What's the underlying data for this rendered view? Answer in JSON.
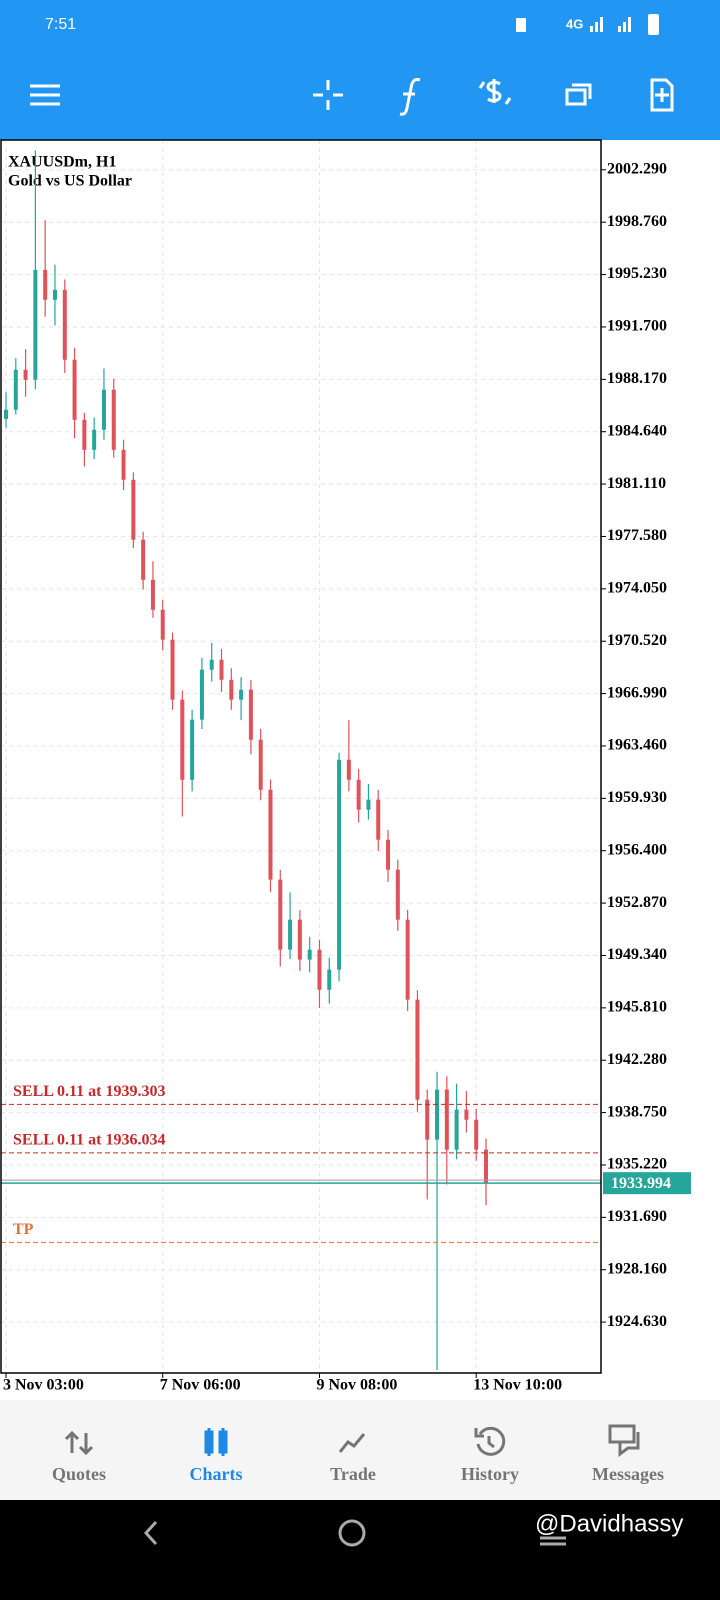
{
  "status_bar": {
    "time": "7:51",
    "network": "4G"
  },
  "chart_data": {
    "type": "candlestick",
    "title": "XAUUSDm, H1",
    "subtitle": "Gold vs US Dollar",
    "categories": [
      "3 Nov 03:00",
      null,
      null,
      null,
      null,
      null,
      null,
      null,
      null,
      null,
      null,
      null,
      null,
      null,
      null,
      null,
      "7 Nov 06:00",
      null,
      null,
      null,
      null,
      null,
      null,
      null,
      null,
      null,
      null,
      null,
      null,
      null,
      null,
      null,
      "9 Nov 08:00",
      null,
      null,
      null,
      null,
      null,
      null,
      null,
      null,
      null,
      null,
      null,
      null,
      null,
      null,
      null,
      "13 Nov 10:00",
      null
    ],
    "open": [
      1985.5,
      1986.12,
      1988.81,
      1988.14,
      1995.55,
      1993.53,
      1994.2,
      1989.49,
      1985.44,
      1983.42,
      1984.77,
      1987.47,
      1983.42,
      1981.4,
      1977.36,
      1974.66,
      1972.64,
      1970.62,
      1966.58,
      1961.18,
      1965.23,
      1968.6,
      1969.27,
      1967.92,
      1966.58,
      1967.25,
      1963.88,
      1960.51,
      1954.45,
      1949.73,
      1951.75,
      1949.06,
      1949.73,
      1947.03,
      1948.38,
      1962.53,
      1961.18,
      1959.16,
      1959.84,
      1957.14,
      1955.12,
      1951.75,
      1946.36,
      1939.62,
      1936.93,
      1940.3,
      1936.25,
      1938.95,
      1938.27,
      1936.25
    ],
    "high": [
      1987.3,
      1989.6,
      1990.2,
      2003.6,
      1998.9,
      1995.9,
      1994.9,
      1990.3,
      1985.9,
      1985.6,
      1988.9,
      1988.2,
      1984.1,
      1981.9,
      1977.9,
      1975.9,
      1973.3,
      1971.1,
      1967.2,
      1965.9,
      1969.4,
      1970.4,
      1970.0,
      1968.7,
      1968.1,
      1967.9,
      1964.6,
      1961.2,
      1955.1,
      1953.6,
      1952.4,
      1950.6,
      1950.4,
      1949.2,
      1963.0,
      1965.2,
      1961.9,
      1960.9,
      1960.5,
      1957.8,
      1955.8,
      1952.4,
      1947.0,
      1940.3,
      1941.5,
      1941.2,
      1940.7,
      1940.2,
      1939.0,
      1937.0
    ],
    "low": [
      1984.9,
      1985.8,
      1987.0,
      1987.5,
      1992.4,
      1991.8,
      1988.6,
      1984.2,
      1982.3,
      1982.8,
      1984.1,
      1982.9,
      1980.7,
      1976.8,
      1974.0,
      1972.1,
      1969.9,
      1965.9,
      1958.7,
      1960.4,
      1964.6,
      1967.8,
      1967.1,
      1965.9,
      1965.2,
      1962.9,
      1959.8,
      1953.6,
      1948.6,
      1949.1,
      1948.3,
      1948.2,
      1945.8,
      1946.1,
      1947.6,
      1960.4,
      1958.3,
      1958.5,
      1956.4,
      1954.3,
      1951.0,
      1945.6,
      1938.8,
      1932.9,
      1921.4,
      1933.9,
      1935.6,
      1937.4,
      1935.5,
      1932.5
    ],
    "close": [
      1986.12,
      1988.81,
      1988.14,
      1995.55,
      1993.53,
      1994.2,
      1989.49,
      1985.44,
      1983.42,
      1984.77,
      1987.47,
      1983.42,
      1981.4,
      1977.36,
      1974.66,
      1972.64,
      1970.62,
      1966.58,
      1961.18,
      1965.23,
      1968.6,
      1969.27,
      1967.92,
      1966.58,
      1967.25,
      1963.88,
      1960.51,
      1954.45,
      1949.73,
      1951.75,
      1949.06,
      1949.73,
      1947.03,
      1948.38,
      1962.53,
      1961.18,
      1959.16,
      1959.84,
      1957.14,
      1955.12,
      1951.75,
      1946.36,
      1939.62,
      1936.93,
      1940.3,
      1936.25,
      1938.95,
      1938.27,
      1936.25,
      1933.994
    ],
    "up_color": "#26a69a",
    "down_color": "#e0525a",
    "ylim": [
      1921.2,
      2004.3
    ],
    "yticks": [
      {
        "value": 2002.29,
        "label": "2002.290"
      },
      {
        "value": 1998.76,
        "label": "1998.760"
      },
      {
        "value": 1995.23,
        "label": "1995.230"
      },
      {
        "value": 1991.7,
        "label": "1991.700"
      },
      {
        "value": 1988.17,
        "label": "1988.170"
      },
      {
        "value": 1984.64,
        "label": "1984.640"
      },
      {
        "value": 1981.11,
        "label": "1981.110"
      },
      {
        "value": 1977.58,
        "label": "1977.580"
      },
      {
        "value": 1974.05,
        "label": "1974.050"
      },
      {
        "value": 1970.52,
        "label": "1970.520"
      },
      {
        "value": 1966.99,
        "label": "1966.990"
      },
      {
        "value": 1963.46,
        "label": "1963.460"
      },
      {
        "value": 1959.93,
        "label": "1959.930"
      },
      {
        "value": 1956.4,
        "label": "1956.400"
      },
      {
        "value": 1952.87,
        "label": "1952.870"
      },
      {
        "value": 1949.34,
        "label": "1949.340"
      },
      {
        "value": 1945.81,
        "label": "1945.810"
      },
      {
        "value": 1942.28,
        "label": "1942.280"
      },
      {
        "value": 1938.75,
        "label": "1938.750"
      },
      {
        "value": 1935.22,
        "label": "1935.220"
      },
      {
        "value": 1931.69,
        "label": "1931.690"
      },
      {
        "value": 1928.16,
        "label": "1928.160"
      },
      {
        "value": 1924.63,
        "label": "1924.630"
      }
    ],
    "grid": true,
    "orders": [
      {
        "label": "SELL 0.11 at 1939.303",
        "value": 1939.303,
        "color": "#c62828"
      },
      {
        "label": "SELL 0.11 at 1936.034",
        "value": 1936.034,
        "color": "#c62828"
      }
    ],
    "tp": {
      "label": "TP",
      "value": 1930.0,
      "color": "#e0733a"
    },
    "bid": 1933.994,
    "bid_color": "#26a69a"
  },
  "tab_bar": {
    "tabs": [
      "Quotes",
      "Charts",
      "Trade",
      "History",
      "Messages"
    ],
    "active": 1
  },
  "watermark": "@Davidhassy"
}
